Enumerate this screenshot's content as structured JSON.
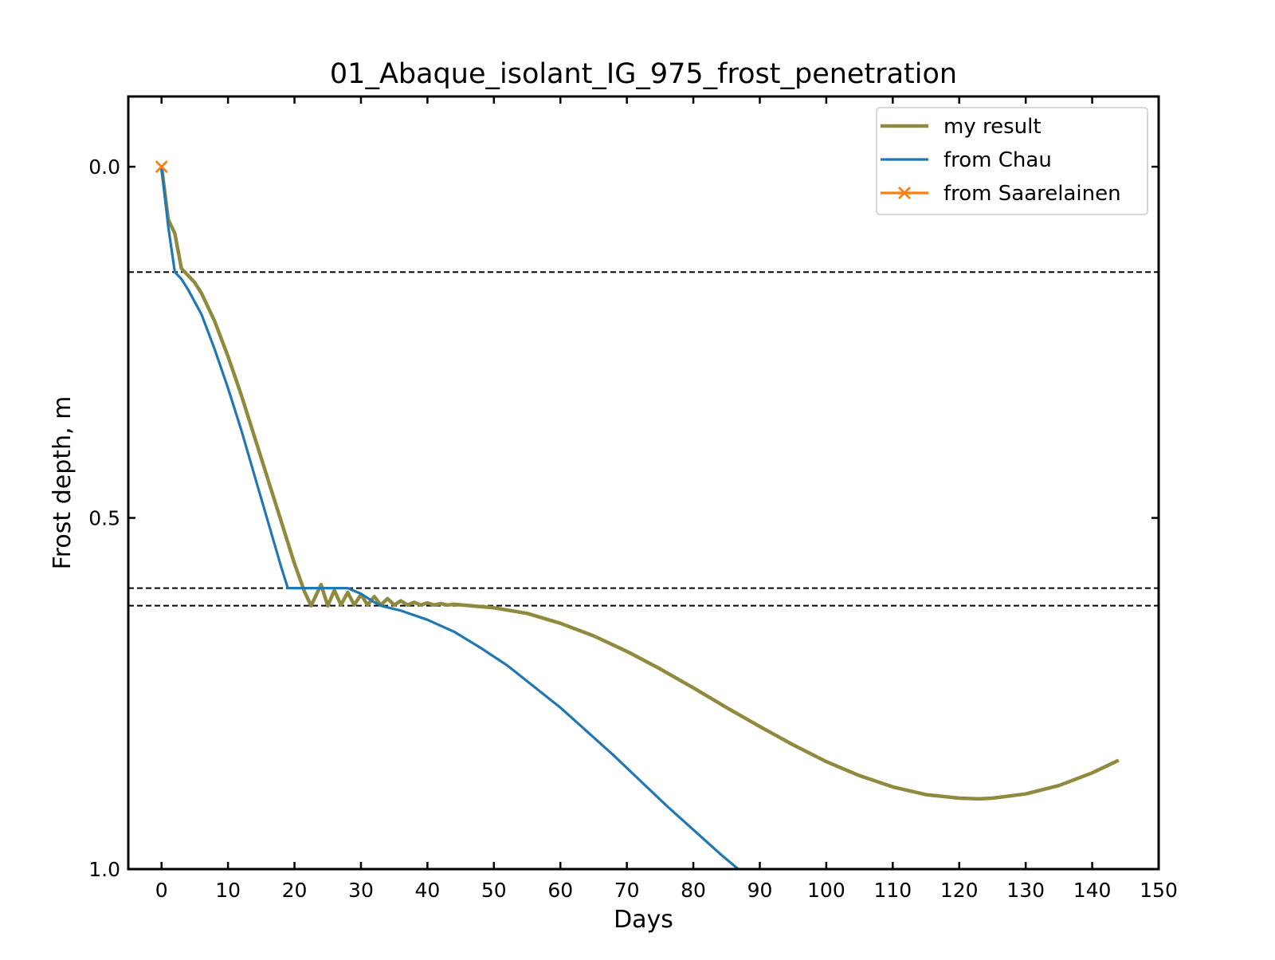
{
  "chart_data": {
    "type": "line",
    "title": "01_Abaque_isolant_IG_975_frost_penetration",
    "xlabel": "Days",
    "ylabel": "Frost depth, m",
    "xlim": [
      -5,
      150
    ],
    "ylim": [
      1.0,
      -0.1
    ],
    "y_inverted": true,
    "grid": false,
    "legend_position": "top-right",
    "xticks": [
      0,
      10,
      20,
      30,
      40,
      50,
      60,
      70,
      80,
      90,
      100,
      110,
      120,
      130,
      140,
      150
    ],
    "xtick_labels": [
      "0",
      "10",
      "20",
      "30",
      "40",
      "50",
      "60",
      "70",
      "80",
      "90",
      "100",
      "110",
      "120",
      "130",
      "140",
      "150"
    ],
    "yticks": [
      0.0,
      0.5,
      1.0
    ],
    "ytick_labels": [
      "0.0",
      "0.5",
      "1.0"
    ],
    "reference_lines": [
      {
        "orientation": "horizontal",
        "y": 0.15,
        "style": "dashed",
        "color": "#000000"
      },
      {
        "orientation": "horizontal",
        "y": 0.6,
        "style": "dashed",
        "color": "#000000"
      },
      {
        "orientation": "horizontal",
        "y": 0.625,
        "style": "dashed",
        "color": "#000000"
      }
    ],
    "series": [
      {
        "name": "my result",
        "color": "#908a3e",
        "marker": "none",
        "points": [
          [
            0,
            0.0
          ],
          [
            1,
            0.075
          ],
          [
            2,
            0.095
          ],
          [
            3,
            0.145
          ],
          [
            4,
            0.155
          ],
          [
            5,
            0.165
          ],
          [
            6,
            0.18
          ],
          [
            8,
            0.22
          ],
          [
            10,
            0.27
          ],
          [
            12,
            0.325
          ],
          [
            14,
            0.385
          ],
          [
            16,
            0.445
          ],
          [
            18,
            0.505
          ],
          [
            20,
            0.565
          ],
          [
            21.5,
            0.605
          ],
          [
            22.5,
            0.625
          ],
          [
            23,
            0.615
          ],
          [
            24,
            0.595
          ],
          [
            25,
            0.625
          ],
          [
            26,
            0.603
          ],
          [
            27,
            0.624
          ],
          [
            28,
            0.606
          ],
          [
            29,
            0.624
          ],
          [
            30,
            0.609
          ],
          [
            31,
            0.624
          ],
          [
            32,
            0.612
          ],
          [
            33,
            0.624
          ],
          [
            34,
            0.615
          ],
          [
            35,
            0.624
          ],
          [
            36,
            0.618
          ],
          [
            37,
            0.624
          ],
          [
            38,
            0.62
          ],
          [
            39,
            0.624
          ],
          [
            40,
            0.621
          ],
          [
            41,
            0.624
          ],
          [
            42,
            0.622
          ],
          [
            43,
            0.624
          ],
          [
            44,
            0.623
          ],
          [
            50,
            0.628
          ],
          [
            55,
            0.636
          ],
          [
            60,
            0.65
          ],
          [
            65,
            0.668
          ],
          [
            70,
            0.69
          ],
          [
            75,
            0.715
          ],
          [
            80,
            0.742
          ],
          [
            85,
            0.77
          ],
          [
            90,
            0.797
          ],
          [
            95,
            0.823
          ],
          [
            100,
            0.847
          ],
          [
            105,
            0.867
          ],
          [
            110,
            0.883
          ],
          [
            115,
            0.894
          ],
          [
            120,
            0.899
          ],
          [
            123,
            0.9
          ],
          [
            125,
            0.899
          ],
          [
            130,
            0.893
          ],
          [
            135,
            0.881
          ],
          [
            140,
            0.863
          ],
          [
            144,
            0.845
          ]
        ]
      },
      {
        "name": "from Chau",
        "color": "#1f77b4",
        "marker": "none",
        "points": [
          [
            0,
            0.0
          ],
          [
            1,
            0.085
          ],
          [
            2,
            0.15
          ],
          [
            3,
            0.16
          ],
          [
            4,
            0.175
          ],
          [
            6,
            0.21
          ],
          [
            8,
            0.26
          ],
          [
            10,
            0.315
          ],
          [
            12,
            0.375
          ],
          [
            14,
            0.44
          ],
          [
            16,
            0.505
          ],
          [
            18,
            0.57
          ],
          [
            19,
            0.6
          ],
          [
            20,
            0.6
          ],
          [
            25,
            0.6
          ],
          [
            28,
            0.6
          ],
          [
            30,
            0.608
          ],
          [
            32,
            0.62
          ],
          [
            33,
            0.625
          ],
          [
            36,
            0.632
          ],
          [
            40,
            0.645
          ],
          [
            44,
            0.662
          ],
          [
            48,
            0.685
          ],
          [
            52,
            0.71
          ],
          [
            56,
            0.74
          ],
          [
            60,
            0.77
          ],
          [
            64,
            0.804
          ],
          [
            68,
            0.838
          ],
          [
            72,
            0.874
          ],
          [
            76,
            0.91
          ],
          [
            80,
            0.944
          ],
          [
            84,
            0.978
          ],
          [
            88,
            1.01
          ],
          [
            91,
            1.035
          ],
          [
            95,
            1.06
          ]
        ]
      },
      {
        "name": "from Saarelainen",
        "color": "#ff7f0e",
        "marker": "x",
        "points": [
          [
            0,
            0.0
          ]
        ]
      }
    ]
  }
}
